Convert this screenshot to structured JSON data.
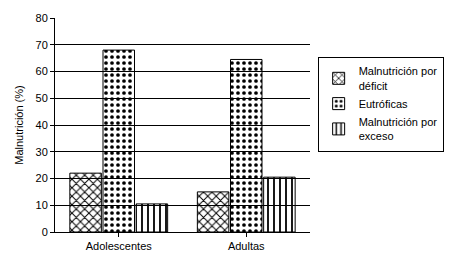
{
  "chart_data": {
    "type": "bar",
    "y_label": "Malnutrición (%)",
    "categories": [
      "Adolescentes",
      "Adultas"
    ],
    "series": [
      {
        "name": "Malnutrición por déficit",
        "color": "#505050",
        "values": [
          22,
          15
        ]
      },
      {
        "name": "Eutróficas",
        "color": "#ffffff",
        "values": [
          68,
          64.5
        ]
      },
      {
        "name": "Malnutrición por exceso",
        "color": "#ffffff",
        "values": [
          10.5,
          20.5
        ]
      }
    ],
    "ylim": [
      0,
      80
    ],
    "yticks": [
      0,
      10,
      20,
      30,
      40,
      50,
      60,
      70,
      80
    ],
    "grid": true,
    "legend": "right"
  }
}
